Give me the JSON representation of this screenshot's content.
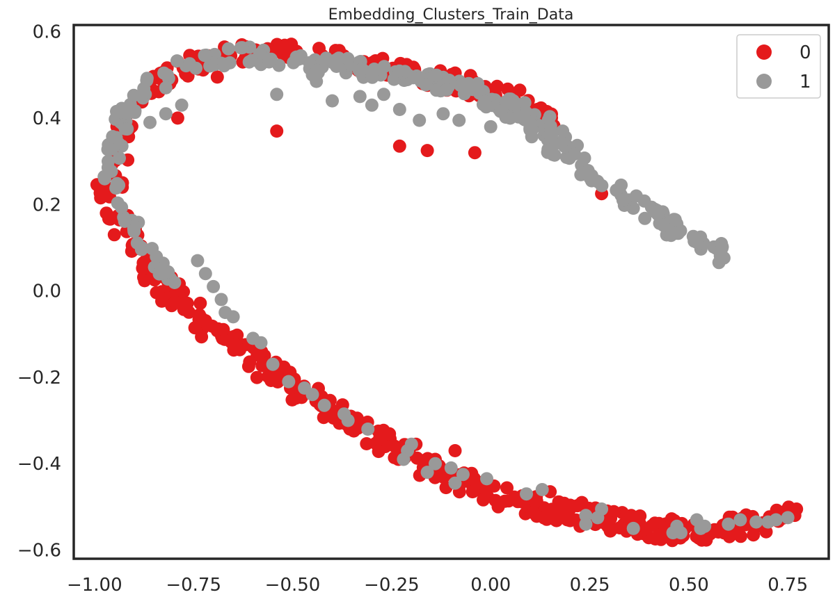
{
  "chart_data": {
    "type": "scatter",
    "title": "Embedding_Clusters_Train_Data",
    "xlabel": "",
    "ylabel": "",
    "xlim": [
      -1.0524,
      0.8532
    ],
    "ylim": [
      -0.6201,
      0.6155
    ],
    "xticks": [
      -1.0,
      -0.75,
      -0.5,
      -0.25,
      0.0,
      0.25,
      0.5,
      0.75
    ],
    "xtick_labels": [
      "−1.00",
      "−0.75",
      "−0.50",
      "−0.25",
      "0.00",
      "0.25",
      "0.50",
      "0.75"
    ],
    "yticks": [
      -0.6,
      -0.4,
      -0.2,
      0.0,
      0.2,
      0.4,
      0.6
    ],
    "ytick_labels": [
      "−0.6",
      "−0.4",
      "−0.2",
      "0.0",
      "0.2",
      "0.4",
      "0.6"
    ],
    "grid": false,
    "legend_position": "top-right",
    "series": [
      {
        "name": "0",
        "color": "#e41a1c",
        "path": [
          [
            -0.98,
            0.22
          ],
          [
            -0.95,
            0.25
          ],
          [
            -0.94,
            0.3
          ],
          [
            -0.93,
            0.35
          ],
          [
            -0.92,
            0.4
          ],
          [
            -0.88,
            0.45
          ],
          [
            -0.83,
            0.49
          ],
          [
            -0.78,
            0.515
          ],
          [
            -0.72,
            0.535
          ],
          [
            -0.65,
            0.548
          ],
          [
            -0.58,
            0.553
          ],
          [
            -0.52,
            0.553
          ],
          [
            -0.45,
            0.548
          ],
          [
            -0.38,
            0.538
          ],
          [
            -0.3,
            0.525
          ],
          [
            -0.22,
            0.51
          ],
          [
            -0.15,
            0.495
          ],
          [
            -0.08,
            0.48
          ],
          [
            -0.02,
            0.465
          ],
          [
            0.04,
            0.45
          ],
          [
            0.1,
            0.42
          ],
          [
            0.15,
            0.39
          ]
        ],
        "path2": [
          [
            -0.94,
            0.19
          ],
          [
            -0.92,
            0.15
          ],
          [
            -0.9,
            0.11
          ],
          [
            -0.87,
            0.07
          ],
          [
            -0.84,
            0.03
          ],
          [
            -0.8,
            -0.01
          ],
          [
            -0.75,
            -0.05
          ],
          [
            -0.7,
            -0.09
          ],
          [
            -0.64,
            -0.13
          ],
          [
            -0.58,
            -0.17
          ],
          [
            -0.52,
            -0.205
          ],
          [
            -0.46,
            -0.24
          ],
          [
            -0.4,
            -0.275
          ],
          [
            -0.34,
            -0.31
          ],
          [
            -0.28,
            -0.345
          ],
          [
            -0.22,
            -0.375
          ],
          [
            -0.16,
            -0.405
          ],
          [
            -0.1,
            -0.43
          ],
          [
            -0.04,
            -0.455
          ],
          [
            0.02,
            -0.475
          ],
          [
            0.08,
            -0.49
          ],
          [
            0.14,
            -0.505
          ],
          [
            0.2,
            -0.515
          ],
          [
            0.26,
            -0.525
          ],
          [
            0.32,
            -0.535
          ],
          [
            0.38,
            -0.545
          ],
          [
            0.44,
            -0.553
          ],
          [
            0.5,
            -0.556
          ],
          [
            0.56,
            -0.555
          ],
          [
            0.62,
            -0.548
          ],
          [
            0.68,
            -0.538
          ],
          [
            0.74,
            -0.525
          ],
          [
            0.77,
            -0.515
          ]
        ],
        "n_path": 190,
        "n_path2": 360,
        "outliers": [
          [
            -0.79,
            0.4
          ],
          [
            -0.54,
            0.37
          ],
          [
            -0.23,
            0.335
          ],
          [
            -0.16,
            0.325
          ],
          [
            -0.04,
            0.32
          ],
          [
            0.28,
            0.225
          ],
          [
            -0.97,
            0.18
          ],
          [
            -0.95,
            0.13
          ],
          [
            -0.93,
            0.24
          ],
          [
            -0.81,
            0.48
          ],
          [
            -0.69,
            0.495
          ],
          [
            -0.51,
            0.54
          ],
          [
            -0.09,
            -0.37
          ],
          [
            -0.14,
            -0.39
          ],
          [
            -0.07,
            -0.43
          ],
          [
            0.15,
            -0.465
          ],
          [
            0.23,
            -0.49
          ]
        ]
      },
      {
        "name": "1",
        "color": "#999999",
        "path": [
          [
            -0.96,
            0.26
          ],
          [
            -0.955,
            0.31
          ],
          [
            -0.94,
            0.36
          ],
          [
            -0.92,
            0.41
          ],
          [
            -0.88,
            0.455
          ],
          [
            -0.84,
            0.49
          ],
          [
            -0.79,
            0.515
          ],
          [
            -0.74,
            0.53
          ],
          [
            -0.68,
            0.54
          ],
          [
            -0.62,
            0.545
          ],
          [
            -0.55,
            0.543
          ],
          [
            -0.48,
            0.535
          ],
          [
            -0.42,
            0.525
          ],
          [
            -0.35,
            0.515
          ],
          [
            -0.28,
            0.505
          ],
          [
            -0.2,
            0.495
          ],
          [
            -0.12,
            0.48
          ],
          [
            -0.04,
            0.46
          ],
          [
            0.04,
            0.435
          ],
          [
            0.1,
            0.41
          ],
          [
            0.16,
            0.38
          ],
          [
            0.22,
            0.355
          ]
        ],
        "path2": [
          [
            -0.06,
            0.455
          ],
          [
            0.0,
            0.43
          ],
          [
            0.06,
            0.4
          ],
          [
            0.11,
            0.37
          ],
          [
            0.16,
            0.335
          ],
          [
            0.2,
            0.305
          ],
          [
            0.25,
            0.27
          ],
          [
            0.3,
            0.24
          ],
          [
            0.35,
            0.21
          ],
          [
            0.4,
            0.18
          ],
          [
            0.45,
            0.155
          ],
          [
            0.5,
            0.13
          ],
          [
            0.55,
            0.1
          ],
          [
            0.6,
            0.075
          ]
        ],
        "path3": [
          [
            -0.96,
            0.27
          ],
          [
            -0.94,
            0.22
          ],
          [
            -0.92,
            0.18
          ],
          [
            -0.9,
            0.14
          ],
          [
            -0.88,
            0.1
          ],
          [
            -0.85,
            0.06
          ],
          [
            -0.8,
            0.03
          ]
        ],
        "n_path": 170,
        "n_path2": 110,
        "n_path3": 30,
        "outliers": [
          [
            -0.54,
            0.455
          ],
          [
            -0.78,
            0.43
          ],
          [
            -0.82,
            0.41
          ],
          [
            -0.86,
            0.39
          ],
          [
            -0.44,
            0.485
          ],
          [
            -0.45,
            0.5
          ],
          [
            -0.4,
            0.44
          ],
          [
            -0.33,
            0.45
          ],
          [
            -0.3,
            0.43
          ],
          [
            -0.27,
            0.455
          ],
          [
            -0.23,
            0.42
          ],
          [
            -0.18,
            0.395
          ],
          [
            -0.12,
            0.41
          ],
          [
            -0.08,
            0.395
          ],
          [
            0.0,
            0.38
          ],
          [
            -0.82,
            0.47
          ],
          [
            -0.74,
            0.07
          ],
          [
            -0.72,
            0.04
          ],
          [
            -0.7,
            0.01
          ],
          [
            -0.68,
            -0.02
          ],
          [
            -0.67,
            -0.05
          ],
          [
            -0.65,
            -0.06
          ],
          [
            -0.6,
            -0.11
          ],
          [
            -0.58,
            -0.12
          ],
          [
            -0.55,
            -0.17
          ],
          [
            -0.51,
            -0.21
          ],
          [
            -0.47,
            -0.225
          ],
          [
            -0.45,
            -0.24
          ],
          [
            -0.42,
            -0.265
          ],
          [
            -0.37,
            -0.285
          ],
          [
            -0.36,
            -0.3
          ],
          [
            -0.31,
            -0.32
          ],
          [
            -0.2,
            -0.355
          ],
          [
            -0.21,
            -0.37
          ],
          [
            -0.22,
            -0.39
          ],
          [
            -0.14,
            -0.4
          ],
          [
            -0.16,
            -0.42
          ],
          [
            -0.1,
            -0.41
          ],
          [
            -0.07,
            -0.425
          ],
          [
            -0.01,
            -0.435
          ],
          [
            -0.09,
            -0.445
          ],
          [
            0.09,
            -0.47
          ],
          [
            0.13,
            -0.46
          ],
          [
            0.24,
            -0.52
          ],
          [
            0.27,
            -0.525
          ],
          [
            0.24,
            -0.54
          ],
          [
            0.28,
            -0.505
          ],
          [
            0.36,
            -0.55
          ],
          [
            0.46,
            -0.56
          ],
          [
            0.47,
            -0.545
          ],
          [
            0.52,
            -0.53
          ],
          [
            0.54,
            -0.545
          ],
          [
            0.6,
            -0.54
          ],
          [
            0.63,
            -0.53
          ],
          [
            0.67,
            -0.535
          ],
          [
            0.7,
            -0.535
          ],
          [
            0.72,
            -0.53
          ],
          [
            0.75,
            -0.525
          ],
          [
            0.53,
            -0.55
          ],
          [
            0.48,
            -0.56
          ]
        ]
      }
    ]
  }
}
